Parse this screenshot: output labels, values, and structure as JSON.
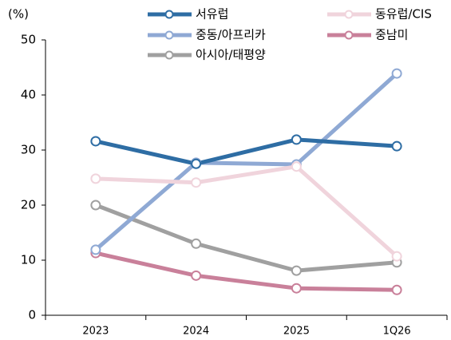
{
  "chart_data": {
    "type": "line",
    "y_label": "(%)",
    "categories": [
      "2023",
      "2024",
      "2025",
      "1Q26"
    ],
    "ylim": [
      0,
      50
    ],
    "yticks": [
      0,
      10,
      20,
      30,
      40,
      50
    ],
    "series": [
      {
        "name": "서유럽",
        "color": "#2e6da4",
        "values": [
          31.6,
          27.5,
          31.9,
          30.7
        ]
      },
      {
        "name": "동유럽/CIS",
        "color": "#f0d4dc",
        "values": [
          24.8,
          24.1,
          27.0,
          10.7
        ]
      },
      {
        "name": "중동/아프리카",
        "color": "#8fa9d4",
        "values": [
          11.9,
          27.7,
          27.4,
          43.9
        ]
      },
      {
        "name": "중남미",
        "color": "#c9809a",
        "values": [
          11.3,
          7.2,
          4.9,
          4.6
        ]
      },
      {
        "name": "아시아/태평양",
        "color": "#a0a0a0",
        "values": [
          20.0,
          13.0,
          8.1,
          9.6
        ]
      }
    ]
  }
}
